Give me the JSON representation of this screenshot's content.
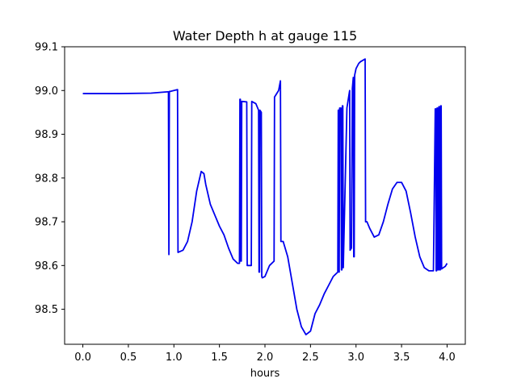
{
  "chart_data": {
    "type": "line",
    "title": "Water Depth h at gauge 115",
    "xlabel": "hours",
    "ylabel": "",
    "xlim": [
      -0.2,
      4.2
    ],
    "ylim": [
      98.42,
      99.1
    ],
    "xticks": [
      0.0,
      0.5,
      1.0,
      1.5,
      2.0,
      2.5,
      3.0,
      3.5,
      4.0
    ],
    "xtick_labels": [
      "0.0",
      "0.5",
      "1.0",
      "1.5",
      "2.0",
      "2.5",
      "3.0",
      "3.5",
      "4.0"
    ],
    "yticks": [
      98.5,
      98.6,
      98.7,
      98.8,
      98.9,
      99.0,
      99.1
    ],
    "ytick_labels": [
      "98.5",
      "98.6",
      "98.7",
      "98.8",
      "98.9",
      "99.0",
      "99.1"
    ],
    "grid": false,
    "series": [
      {
        "color": "#0000ee",
        "x": [
          0.0,
          0.4,
          0.75,
          0.93,
          0.94,
          0.945,
          0.95,
          0.96,
          1.0,
          1.04,
          1.045,
          1.1,
          1.15,
          1.2,
          1.25,
          1.3,
          1.33,
          1.35,
          1.4,
          1.45,
          1.5,
          1.55,
          1.6,
          1.65,
          1.7,
          1.72,
          1.725,
          1.73,
          1.735,
          1.74,
          1.745,
          1.75,
          1.8,
          1.805,
          1.85,
          1.855,
          1.9,
          1.93,
          1.935,
          1.94,
          1.945,
          1.96,
          1.965,
          1.97,
          2.0,
          2.05,
          2.1,
          2.105,
          2.15,
          2.17,
          2.175,
          2.2,
          2.25,
          2.3,
          2.35,
          2.4,
          2.45,
          2.5,
          2.55,
          2.6,
          2.65,
          2.7,
          2.75,
          2.8,
          2.805,
          2.81,
          2.815,
          2.82,
          2.835,
          2.84,
          2.845,
          2.85,
          2.855,
          2.86,
          2.9,
          2.93,
          2.935,
          2.95,
          2.96,
          2.97,
          2.975,
          2.98,
          2.985,
          2.99,
          3.0,
          3.03,
          3.05,
          3.1,
          3.105,
          3.12,
          3.15,
          3.2,
          3.25,
          3.3,
          3.35,
          3.4,
          3.45,
          3.5,
          3.55,
          3.6,
          3.65,
          3.7,
          3.75,
          3.8,
          3.85,
          3.87,
          3.875,
          3.88,
          3.885,
          3.89,
          3.895,
          3.9,
          3.905,
          3.91,
          3.915,
          3.92,
          3.925,
          3.93,
          3.935,
          3.94,
          3.95,
          3.98,
          4.0
        ],
        "y": [
          98.993,
          98.993,
          98.994,
          98.997,
          98.997,
          98.625,
          98.998,
          98.998,
          99.0,
          99.002,
          98.63,
          98.635,
          98.655,
          98.7,
          98.77,
          98.815,
          98.81,
          98.785,
          98.74,
          98.715,
          98.69,
          98.67,
          98.64,
          98.615,
          98.605,
          98.605,
          98.98,
          98.98,
          98.61,
          98.61,
          98.975,
          98.975,
          98.974,
          98.6,
          98.6,
          98.975,
          98.97,
          98.955,
          98.585,
          98.585,
          98.955,
          98.95,
          98.575,
          98.572,
          98.575,
          98.6,
          98.61,
          98.985,
          99.0,
          99.022,
          98.655,
          98.655,
          98.62,
          98.56,
          98.5,
          98.46,
          98.442,
          98.45,
          98.49,
          98.51,
          98.535,
          98.555,
          98.575,
          98.585,
          98.955,
          98.955,
          98.585,
          98.96,
          98.96,
          98.59,
          98.59,
          98.965,
          98.965,
          98.595,
          98.96,
          99.0,
          98.635,
          98.64,
          99.005,
          99.03,
          98.62,
          98.62,
          99.035,
          99.04,
          99.05,
          99.062,
          99.066,
          99.072,
          98.7,
          98.7,
          98.685,
          98.665,
          98.67,
          98.7,
          98.74,
          98.775,
          98.79,
          98.79,
          98.77,
          98.72,
          98.665,
          98.62,
          98.595,
          98.588,
          98.588,
          98.958,
          98.958,
          98.588,
          98.588,
          98.96,
          98.96,
          98.59,
          98.59,
          98.963,
          98.963,
          98.59,
          98.59,
          98.965,
          98.965,
          98.592,
          98.594,
          98.598,
          98.605
        ]
      }
    ]
  }
}
